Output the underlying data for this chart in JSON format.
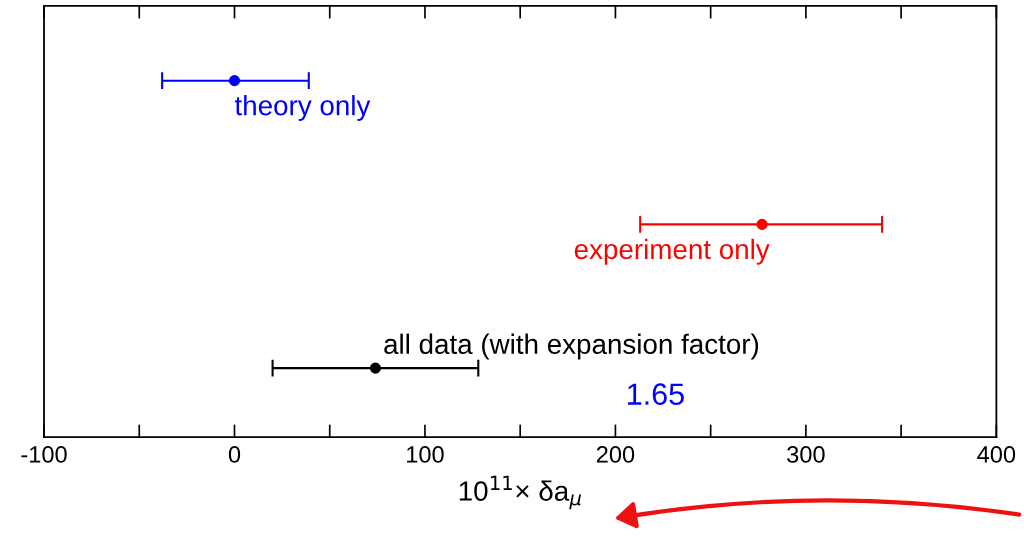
{
  "chart_data": {
    "type": "scatter",
    "orientation": "horizontal",
    "categories": [
      null,
      null,
      null
    ],
    "values": [
      0,
      277,
      74
    ],
    "errors": [
      [
        -38,
        39
      ],
      [
        213,
        340
      ],
      [
        20,
        128
      ]
    ],
    "colors": [
      "#0000ff",
      "#ff0000",
      "#000000"
    ],
    "marker": "circle",
    "xlim": [
      -100,
      400
    ],
    "xticks": [
      -100,
      {
        "value": -50,
        "label": null
      },
      0,
      {
        "value": 50,
        "label": null
      },
      100,
      {
        "value": 150,
        "label": null
      },
      200,
      {
        "value": 250,
        "label": null
      },
      300,
      {
        "value": 350,
        "label": null
      },
      400
    ],
    "xlabel": "10$^{11}$× δa$_{μ}$",
    "annotations": [
      "theory only",
      "experiment only",
      "all data (with expansion factor)",
      "1.65"
    ],
    "tick_labels": "x",
    "grid": false
  }
}
